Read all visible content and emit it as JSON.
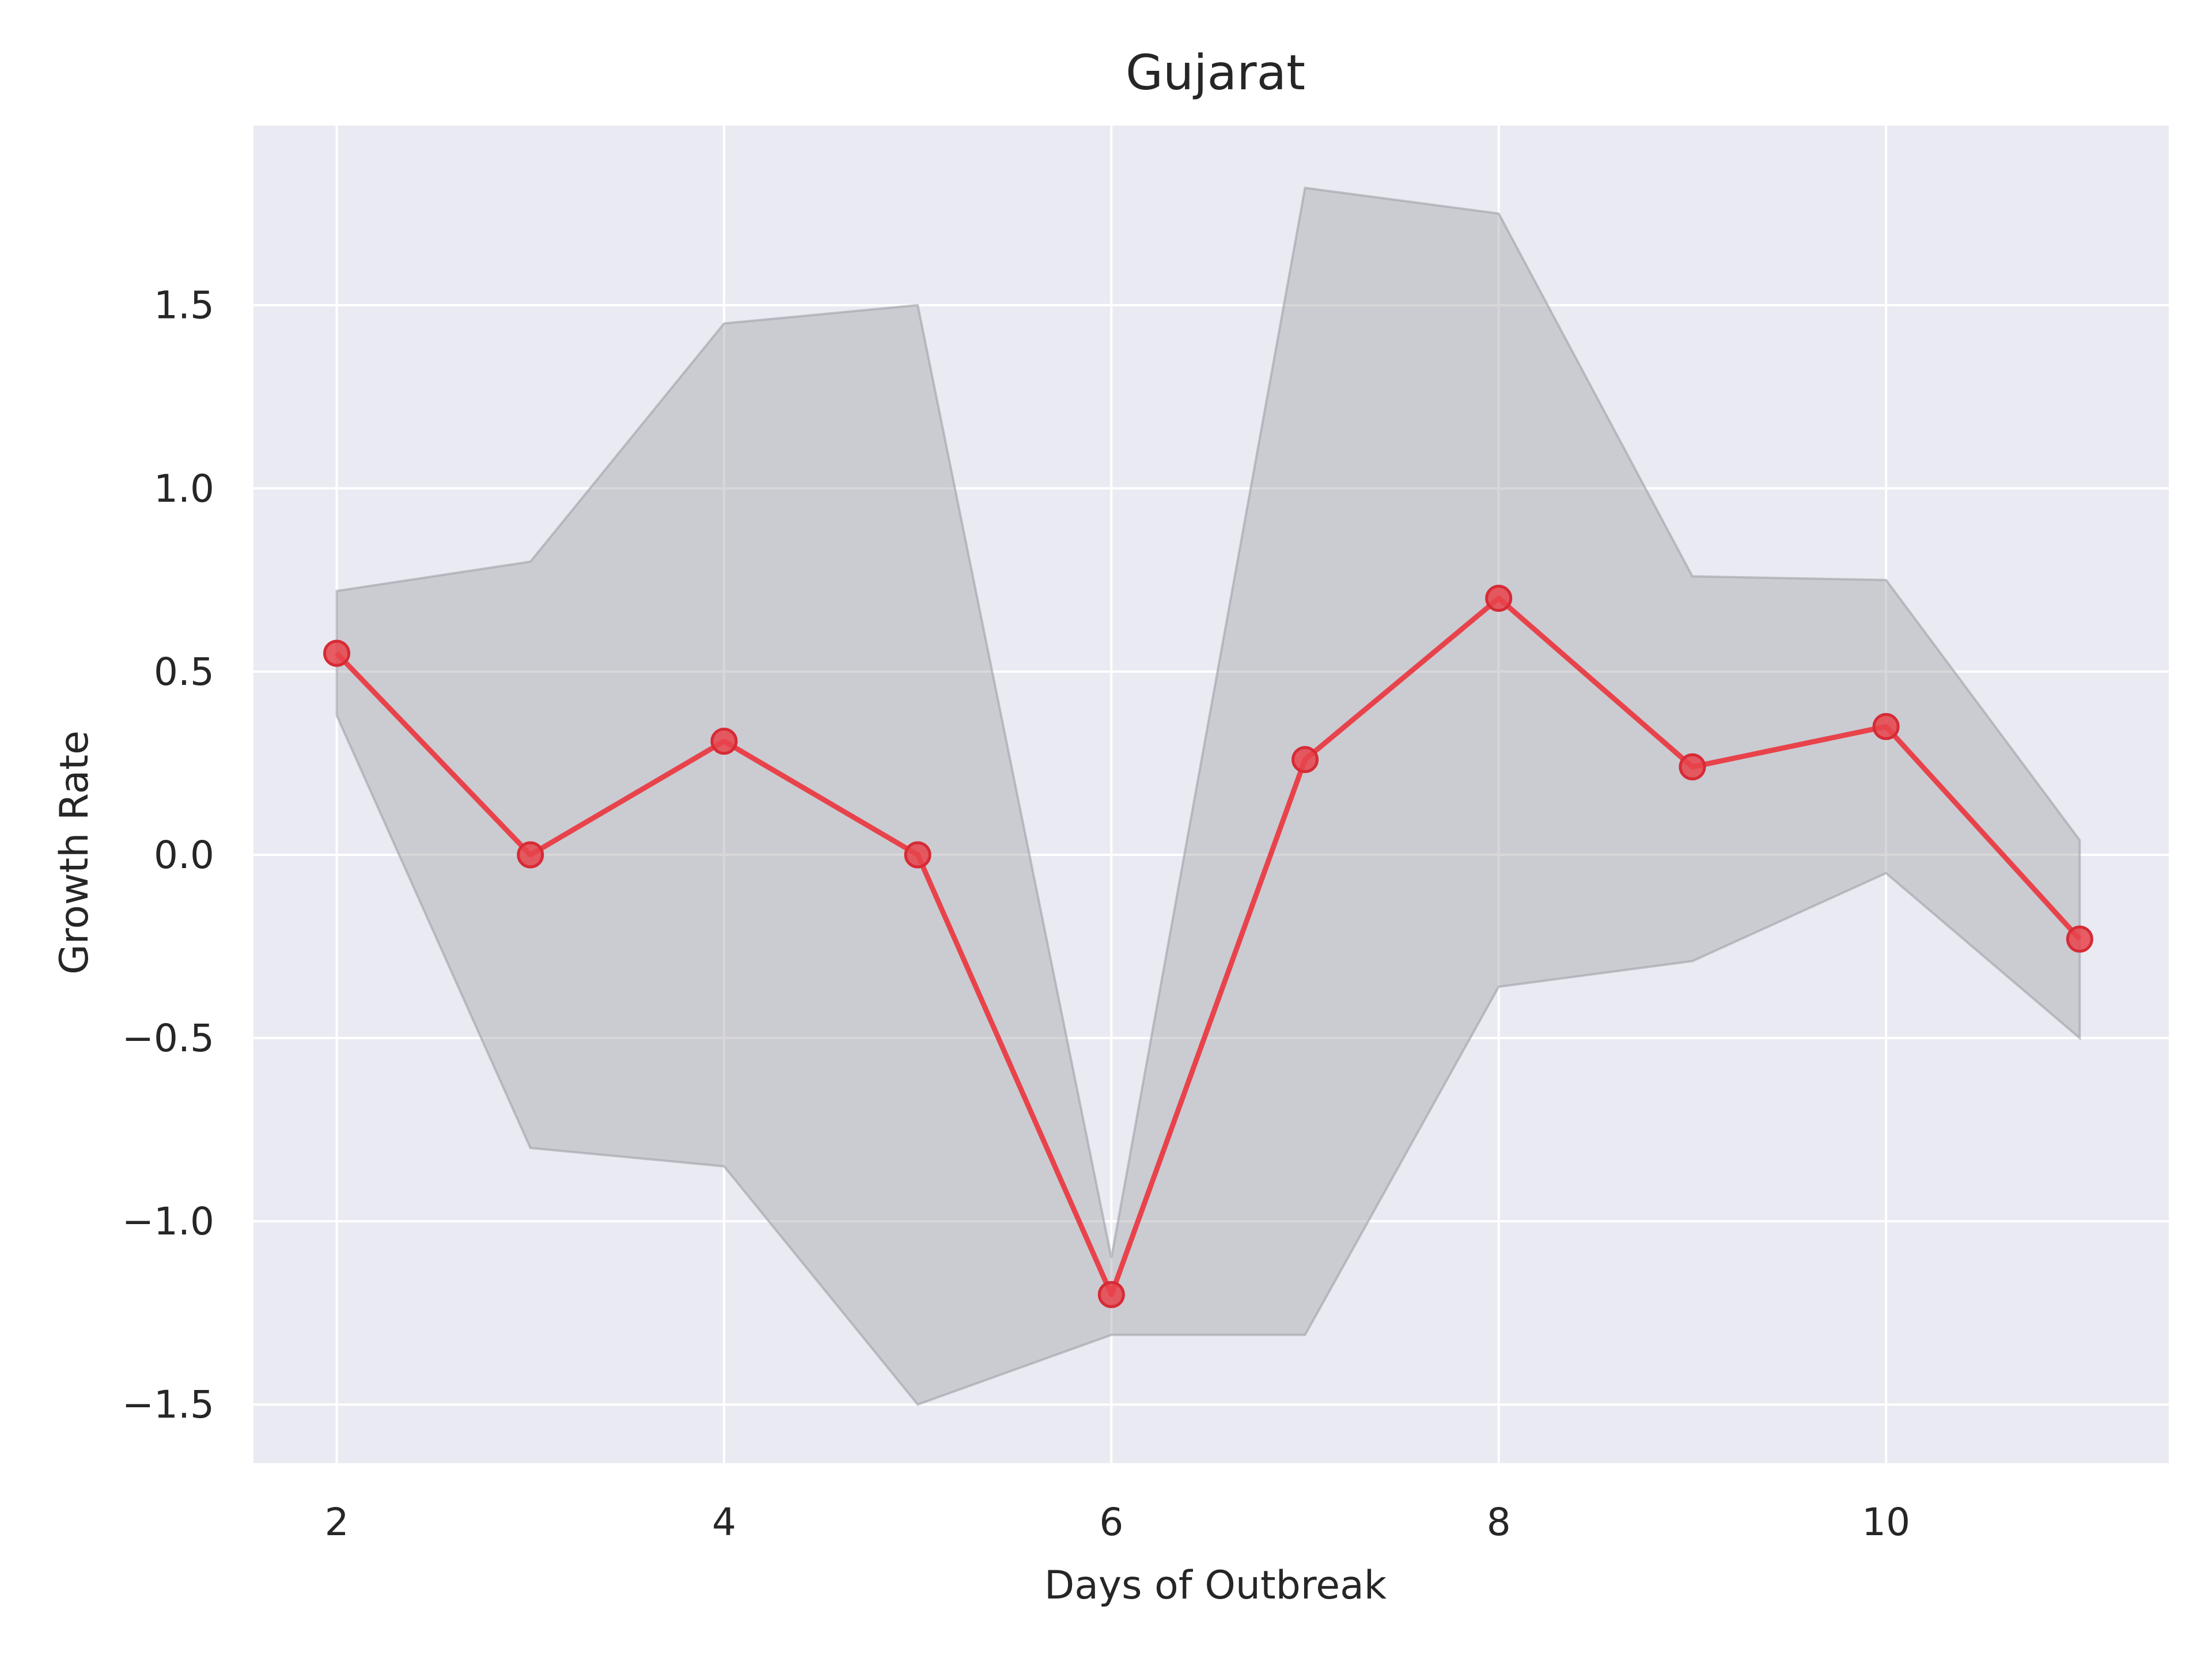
{
  "chart_data": {
    "type": "line",
    "title": "Gujarat",
    "xlabel": "Days of Outbreak",
    "ylabel": "Growth Rate",
    "xlim": [
      1.57,
      11.46
    ],
    "ylim": [
      -1.66,
      1.99
    ],
    "xticks": [
      2,
      4,
      6,
      8,
      10
    ],
    "xtick_labels": [
      "2",
      "4",
      "6",
      "8",
      "10"
    ],
    "yticks": [
      -1.5,
      -1.0,
      -0.5,
      0.0,
      0.5,
      1.0,
      1.5
    ],
    "ytick_labels": [
      "−1.5",
      "−1.0",
      "−0.5",
      "0.0",
      "0.5",
      "1.0",
      "1.5"
    ],
    "grid": true,
    "background": "#eaeaf2",
    "series": [
      {
        "x": [
          2,
          3,
          4,
          5,
          6,
          7,
          8,
          9,
          10,
          11
        ],
        "y": [
          0.55,
          0.0,
          0.31,
          0.0,
          -1.2,
          0.26,
          0.7,
          0.24,
          0.35,
          -0.23
        ],
        "color": "#e8434b",
        "marker": "circle"
      }
    ],
    "band": {
      "x": [
        2,
        3,
        4,
        5,
        6,
        7,
        8,
        9,
        10,
        11
      ],
      "upper": [
        0.72,
        0.8,
        1.45,
        1.5,
        -1.1,
        1.82,
        1.75,
        0.76,
        0.75,
        0.04
      ],
      "lower": [
        0.38,
        -0.8,
        -0.85,
        -1.5,
        -1.31,
        -1.31,
        -0.36,
        -0.29,
        -0.05,
        -0.5
      ],
      "color": "#a0a0a8"
    }
  }
}
